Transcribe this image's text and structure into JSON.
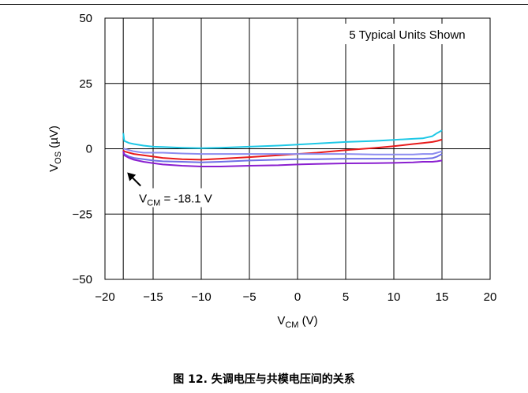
{
  "caption": "图 12. 失调电压与共模电压间的关系",
  "chart_data": {
    "type": "line",
    "title": "",
    "xlabel": {
      "main": "V",
      "sub": "CM",
      "unit": " (V)"
    },
    "ylabel": {
      "main": "V",
      "sub": "OS",
      "unit": " (µV)"
    },
    "xlim": [
      -20,
      20
    ],
    "ylim": [
      -50,
      50
    ],
    "xticks": [
      -20,
      -15,
      -10,
      -5,
      0,
      5,
      10,
      15,
      20
    ],
    "xtick_labels": [
      "−20",
      "−15",
      "−10",
      "−5",
      "0",
      "5",
      "10",
      "15",
      "20"
    ],
    "yticks": [
      -50,
      -25,
      0,
      25,
      50
    ],
    "ytick_labels": [
      "−50",
      "−25",
      "0",
      "25",
      "50"
    ],
    "grid": true,
    "legend_note": "5 Typical Units Shown",
    "annotation": {
      "main": "V",
      "sub": "CM",
      "rest": " = -18.1 V",
      "points_to": [
        -18.1,
        0
      ]
    },
    "series": [
      {
        "color": "#1ec8e6",
        "x": [
          -18.1,
          -18.0,
          -17.5,
          -17,
          -16,
          -15,
          -14,
          -12,
          -10,
          -8,
          -5,
          -2,
          0,
          2,
          5,
          8,
          10,
          12,
          13,
          14,
          14.5,
          15
        ],
        "y": [
          6,
          3,
          2.2,
          1.8,
          1.2,
          0.8,
          0.7,
          0.4,
          0.2,
          0.4,
          0.8,
          1.2,
          1.6,
          2.0,
          2.6,
          3.0,
          3.4,
          3.8,
          4.0,
          4.8,
          6,
          7
        ]
      },
      {
        "color": "#e81b1b",
        "x": [
          -18.1,
          -18.0,
          -17.5,
          -17,
          -16,
          -15,
          -14,
          -12,
          -10,
          -8,
          -5,
          -2,
          0,
          2,
          5,
          8,
          10,
          12,
          13,
          14,
          14.5,
          15
        ],
        "y": [
          -0.5,
          -1,
          -1.5,
          -2,
          -2.5,
          -3,
          -3.5,
          -4,
          -4.2,
          -3.8,
          -3.2,
          -2.5,
          -2,
          -1.5,
          -0.5,
          0.3,
          1,
          1.8,
          2.2,
          2.6,
          3,
          3.5
        ]
      },
      {
        "color": "#8c8cf0",
        "x": [
          -18.1,
          -18.0,
          -17.5,
          -17,
          -16,
          -15,
          -14,
          -12,
          -10,
          -8,
          -5,
          -2,
          0,
          2,
          5,
          8,
          10,
          12,
          13,
          14,
          14.5,
          15
        ],
        "y": [
          0,
          0,
          -0.5,
          -1,
          -1.5,
          -1.5,
          -1.5,
          -1.8,
          -2,
          -2,
          -2,
          -2,
          -2,
          -2,
          -2,
          -2.2,
          -2.2,
          -2.2,
          -2,
          -2,
          -1.5,
          -1
        ]
      },
      {
        "color": "#6f6fe6",
        "x": [
          -18.1,
          -18.0,
          -17.5,
          -17,
          -16,
          -15,
          -14,
          -12,
          -10,
          -8,
          -5,
          -2,
          0,
          2,
          5,
          8,
          10,
          12,
          13,
          14,
          14.5,
          15
        ],
        "y": [
          -1,
          -2,
          -3,
          -3.5,
          -4,
          -4.5,
          -4.8,
          -5,
          -5.2,
          -5,
          -4.5,
          -4.2,
          -4,
          -4,
          -3.8,
          -3.8,
          -3.8,
          -3.8,
          -3.8,
          -3.6,
          -3,
          -2
        ]
      },
      {
        "color": "#8a1fd0",
        "x": [
          -18.1,
          -18.0,
          -17.5,
          -17,
          -16,
          -15,
          -14,
          -12,
          -10,
          -8,
          -5,
          -2,
          0,
          2,
          5,
          8,
          10,
          12,
          13,
          14,
          14.5,
          15
        ],
        "y": [
          -1,
          -2.5,
          -3.5,
          -4.2,
          -5,
          -5.5,
          -6,
          -6.5,
          -6.8,
          -6.8,
          -6.5,
          -6.3,
          -6,
          -5.8,
          -5.6,
          -5.5,
          -5.4,
          -5.2,
          -5,
          -5,
          -4.8,
          -4.5
        ]
      }
    ]
  }
}
